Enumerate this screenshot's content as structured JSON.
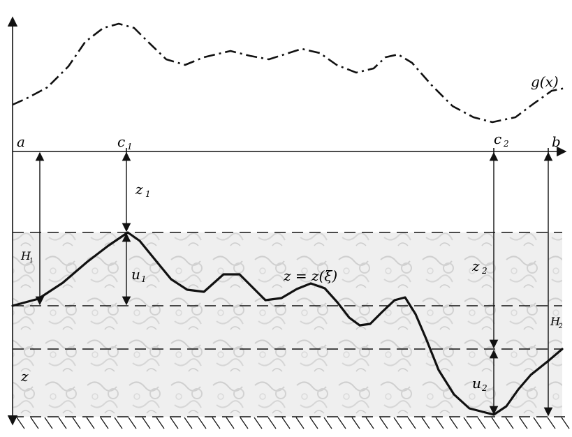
{
  "labels": {
    "g_func": "g(x)",
    "a": "a",
    "b": "b",
    "c1": "c",
    "c1_sub": "1",
    "c2": "c",
    "c2_sub": "2",
    "z1": "z",
    "z1_sub": "1",
    "z2": "z",
    "z2_sub": "2",
    "H1": "H",
    "H1_sub": "1",
    "H2": "H",
    "H2_sub": "2",
    "u1": "u",
    "u1_sub": "1",
    "u2": "u",
    "u2_sub": "2",
    "z_axis": "z",
    "surface_eq": "z = z(ξ)"
  },
  "colors": {
    "line": "#111111",
    "stone_fill": "#e6e6e6"
  }
}
